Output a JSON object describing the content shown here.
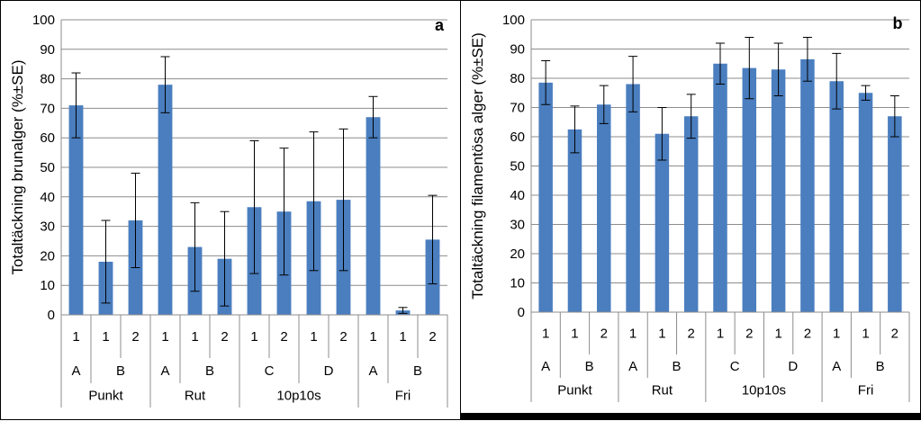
{
  "chart_data": [
    {
      "type": "bar",
      "panel_label": "a",
      "ylabel": "Totaltäckning brunalger (%±SE)",
      "ylim": [
        0,
        100
      ],
      "yticks": [
        "0",
        "10",
        "20",
        "30",
        "40",
        "50",
        "60",
        "70",
        "80",
        "90",
        "100"
      ],
      "grid": true,
      "color": "#4a7ebf",
      "categories": [
        {
          "level1": "1",
          "level2": "A",
          "level3": "Punkt"
        },
        {
          "level1": "1",
          "level2": "B",
          "level3": "Punkt"
        },
        {
          "level1": "2",
          "level2": "B",
          "level3": "Punkt"
        },
        {
          "level1": "1",
          "level2": "A",
          "level3": "Rut"
        },
        {
          "level1": "1",
          "level2": "B",
          "level3": "Rut"
        },
        {
          "level1": "2",
          "level2": "B",
          "level3": "Rut"
        },
        {
          "level1": "1",
          "level2": "C",
          "level3": "10p10s"
        },
        {
          "level1": "2",
          "level2": "C",
          "level3": "10p10s"
        },
        {
          "level1": "1",
          "level2": "D",
          "level3": "10p10s"
        },
        {
          "level1": "2",
          "level2": "D",
          "level3": "10p10s"
        },
        {
          "level1": "1",
          "level2": "A",
          "level3": "Fri"
        },
        {
          "level1": "1",
          "level2": "B",
          "level3": "Fri"
        },
        {
          "level1": "2",
          "level2": "B",
          "level3": "Fri"
        }
      ],
      "level2_groups": [
        {
          "label": "A",
          "span": 1
        },
        {
          "label": "B",
          "span": 2
        },
        {
          "label": "A",
          "span": 1
        },
        {
          "label": "B",
          "span": 2
        },
        {
          "label": "C",
          "span": 2
        },
        {
          "label": "D",
          "span": 2
        },
        {
          "label": "A",
          "span": 1
        },
        {
          "label": "B",
          "span": 2
        }
      ],
      "level3_groups": [
        {
          "label": "Punkt",
          "span": 3
        },
        {
          "label": "Rut",
          "span": 3
        },
        {
          "label": "10p10s",
          "span": 4
        },
        {
          "label": "Fri",
          "span": 3
        }
      ],
      "values": [
        71,
        18,
        32,
        78,
        23,
        19,
        36.5,
        35,
        38.5,
        39,
        67,
        1.5,
        25.5
      ],
      "errors": [
        11,
        14,
        16,
        9.5,
        15,
        16,
        22.5,
        21.5,
        23.5,
        24,
        7,
        1,
        15
      ]
    },
    {
      "type": "bar",
      "panel_label": "b",
      "ylabel": "Totaltäckning filamentösa alger (%±SE)",
      "ylim": [
        0,
        100
      ],
      "yticks": [
        "0",
        "10",
        "20",
        "30",
        "40",
        "50",
        "60",
        "70",
        "80",
        "90",
        "100"
      ],
      "grid": true,
      "color": "#4a7ebf",
      "categories": [
        {
          "level1": "1",
          "level2": "A",
          "level3": "Punkt"
        },
        {
          "level1": "1",
          "level2": "B",
          "level3": "Punkt"
        },
        {
          "level1": "2",
          "level2": "B",
          "level3": "Punkt"
        },
        {
          "level1": "1",
          "level2": "A",
          "level3": "Rut"
        },
        {
          "level1": "1",
          "level2": "B",
          "level3": "Rut"
        },
        {
          "level1": "2",
          "level2": "B",
          "level3": "Rut"
        },
        {
          "level1": "1",
          "level2": "C",
          "level3": "10p10s"
        },
        {
          "level1": "2",
          "level2": "C",
          "level3": "10p10s"
        },
        {
          "level1": "1",
          "level2": "D",
          "level3": "10p10s"
        },
        {
          "level1": "2",
          "level2": "D",
          "level3": "10p10s"
        },
        {
          "level1": "1",
          "level2": "A",
          "level3": "Fri"
        },
        {
          "level1": "1",
          "level2": "B",
          "level3": "Fri"
        },
        {
          "level1": "2",
          "level2": "B",
          "level3": "Fri"
        }
      ],
      "level2_groups": [
        {
          "label": "A",
          "span": 1
        },
        {
          "label": "B",
          "span": 2
        },
        {
          "label": "A",
          "span": 1
        },
        {
          "label": "B",
          "span": 2
        },
        {
          "label": "C",
          "span": 2
        },
        {
          "label": "D",
          "span": 2
        },
        {
          "label": "A",
          "span": 1
        },
        {
          "label": "B",
          "span": 2
        }
      ],
      "level3_groups": [
        {
          "label": "Punkt",
          "span": 3
        },
        {
          "label": "Rut",
          "span": 3
        },
        {
          "label": "10p10s",
          "span": 4
        },
        {
          "label": "Fri",
          "span": 3
        }
      ],
      "values": [
        78.5,
        62.5,
        71,
        78,
        61,
        67,
        85,
        83.5,
        83,
        86.5,
        79,
        75,
        67
      ],
      "errors": [
        7.5,
        8,
        6.5,
        9.5,
        9,
        7.5,
        7,
        10.5,
        9,
        7.5,
        9.5,
        2.5,
        7
      ]
    }
  ]
}
